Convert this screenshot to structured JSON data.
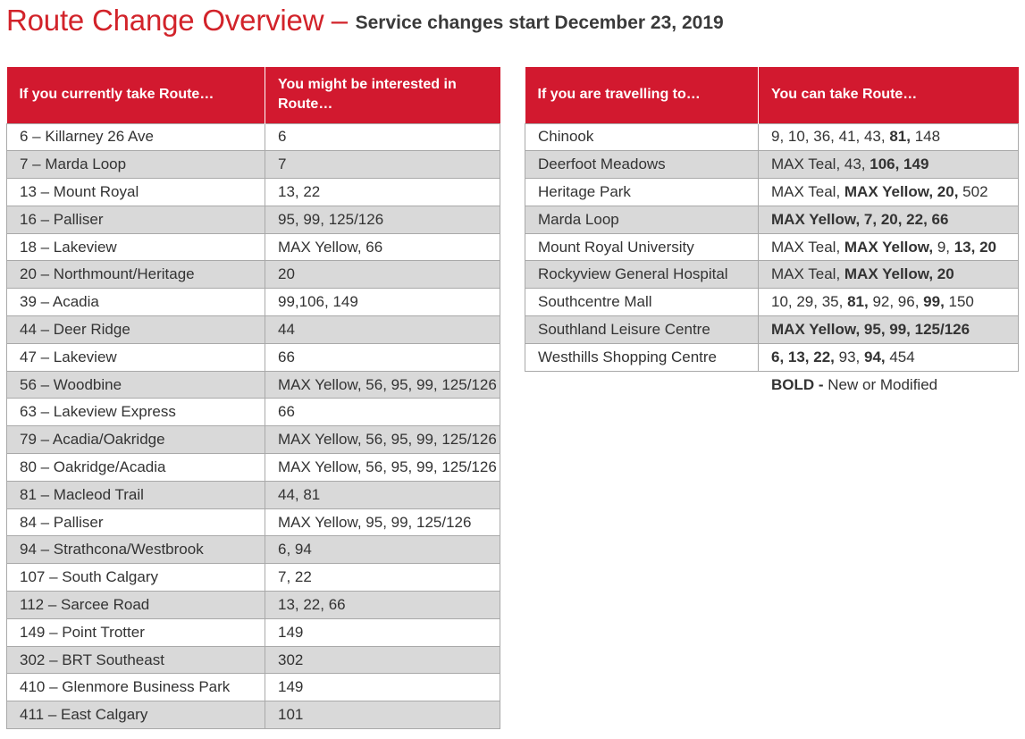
{
  "header": {
    "title": "Route Change Overview",
    "separator": "–",
    "subtitle": "Service changes start December 23, 2019"
  },
  "colors": {
    "accent": "#d2192f",
    "title_red": "#d2232a",
    "row_alt": "#d9d9d9"
  },
  "left_table": {
    "headers": [
      "If you currently take Route…",
      "You might be interested in Route…"
    ],
    "rows": [
      [
        "6 – Killarney 26 Ave",
        "6"
      ],
      [
        "7 – Marda Loop",
        "7"
      ],
      [
        "13 – Mount Royal",
        "13, 22"
      ],
      [
        "16 – Palliser",
        "95, 99, 125/126"
      ],
      [
        "18 – Lakeview",
        "MAX Yellow, 66"
      ],
      [
        "20 – Northmount/Heritage",
        "20"
      ],
      [
        "39 – Acadia",
        "99,106, 149"
      ],
      [
        "44 – Deer Ridge",
        "44"
      ],
      [
        "47 – Lakeview",
        "66"
      ],
      [
        "56 – Woodbine",
        "MAX Yellow, 56, 95, 99, 125/126"
      ],
      [
        "63 – Lakeview Express",
        "66"
      ],
      [
        "79 – Acadia/Oakridge",
        "MAX Yellow, 56, 95, 99, 125/126"
      ],
      [
        "80 – Oakridge/Acadia",
        "MAX Yellow, 56, 95, 99, 125/126"
      ],
      [
        "81 – Macleod Trail",
        "44, 81"
      ],
      [
        "84 – Palliser",
        "MAX Yellow, 95, 99, 125/126"
      ],
      [
        "94 – Strathcona/Westbrook",
        "6, 94"
      ],
      [
        "107 – South Calgary",
        "7, 22"
      ],
      [
        "112 – Sarcee Road",
        "13, 22, 66"
      ],
      [
        "149 – Point Trotter",
        "149"
      ],
      [
        "302 – BRT Southeast",
        "302"
      ],
      [
        "410 – Glenmore Business Park",
        "149"
      ],
      [
        "411 – East Calgary",
        "101"
      ]
    ]
  },
  "right_table": {
    "headers": [
      "If you are travelling to…",
      "You can take Route…"
    ],
    "rows": [
      {
        "destination": "Chinook",
        "routes": [
          {
            "text": "9, 10, 36, 41, 43, ",
            "bold": false
          },
          {
            "text": "81,",
            "bold": true
          },
          {
            "text": " 148",
            "bold": false
          }
        ]
      },
      {
        "destination": "Deerfoot Meadows",
        "routes": [
          {
            "text": "MAX Teal, 43, ",
            "bold": false
          },
          {
            "text": "106, 149",
            "bold": true
          }
        ]
      },
      {
        "destination": "Heritage Park",
        "routes": [
          {
            "text": "MAX Teal, ",
            "bold": false
          },
          {
            "text": "MAX Yellow, 20,",
            "bold": true
          },
          {
            "text": " 502",
            "bold": false
          }
        ]
      },
      {
        "destination": "Marda Loop",
        "routes": [
          {
            "text": "MAX Yellow, 7, 20, 22, 66",
            "bold": true
          }
        ]
      },
      {
        "destination": "Mount Royal University",
        "routes": [
          {
            "text": "MAX Teal, ",
            "bold": false
          },
          {
            "text": "MAX Yellow,",
            "bold": true
          },
          {
            "text": " 9, ",
            "bold": false
          },
          {
            "text": "13, 20",
            "bold": true
          }
        ]
      },
      {
        "destination": "Rockyview General Hospital",
        "routes": [
          {
            "text": "MAX Teal, ",
            "bold": false
          },
          {
            "text": "MAX Yellow, 20",
            "bold": true
          }
        ]
      },
      {
        "destination": "Southcentre Mall",
        "routes": [
          {
            "text": "10, 29, 35, ",
            "bold": false
          },
          {
            "text": "81,",
            "bold": true
          },
          {
            "text": " 92, 96, ",
            "bold": false
          },
          {
            "text": "99,",
            "bold": true
          },
          {
            "text": " 150",
            "bold": false
          }
        ]
      },
      {
        "destination": "Southland Leisure Centre",
        "routes": [
          {
            "text": "MAX Yellow, 95, 99, 125/126",
            "bold": true
          }
        ]
      },
      {
        "destination": "Westhills Shopping Centre",
        "routes": [
          {
            "text": "6, 13, 22,",
            "bold": true
          },
          {
            "text": " 93, ",
            "bold": false
          },
          {
            "text": "94,",
            "bold": true
          },
          {
            "text": " 454",
            "bold": false
          }
        ]
      }
    ]
  },
  "legend": {
    "bold_label": "BOLD -",
    "text": " New or Modified"
  }
}
